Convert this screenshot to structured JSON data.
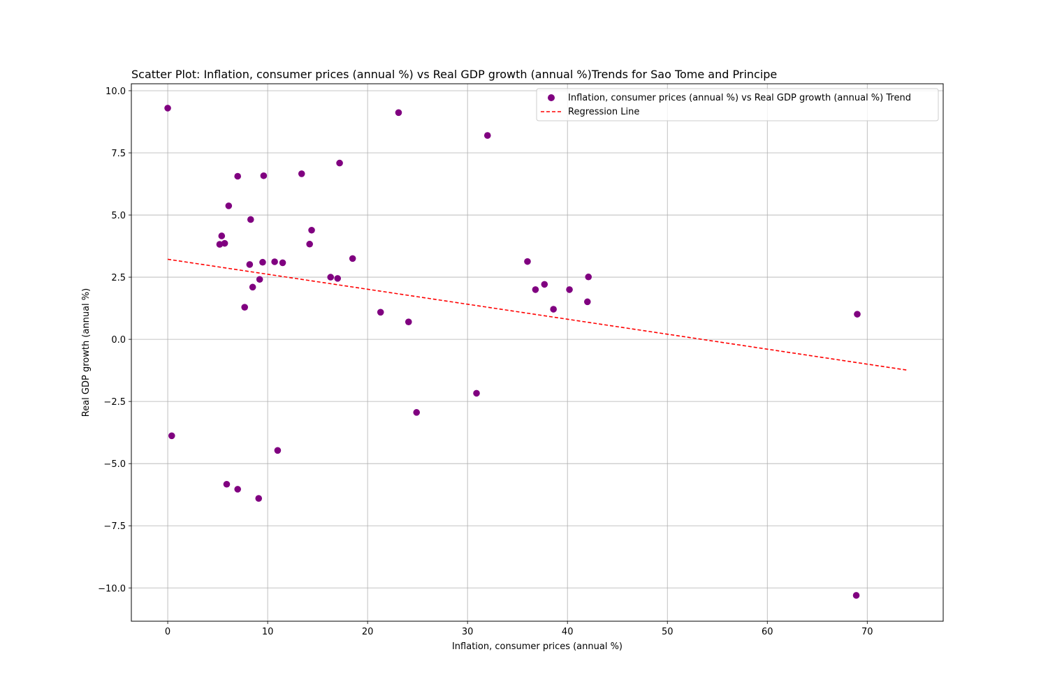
{
  "chart_data": {
    "type": "scatter",
    "title": "Scatter Plot: Inflation, consumer prices (annual %) vs Real GDP growth (annual %)Trends for Sao Tome and Principe",
    "xlabel": "Inflation, consumer prices (annual %)",
    "ylabel": "Real GDP growth (annual %)",
    "xlim": [
      -3.64,
      77.6
    ],
    "ylim": [
      -11.34,
      10.28
    ],
    "xticks": [
      0,
      10,
      20,
      30,
      40,
      50,
      60,
      70
    ],
    "yticks": [
      10.0,
      7.5,
      5.0,
      2.5,
      0.0,
      -2.5,
      -5.0,
      -7.5,
      -10.0
    ],
    "xtick_labels": [
      "0",
      "10",
      "20",
      "30",
      "40",
      "50",
      "60",
      "70"
    ],
    "ytick_labels": [
      "10.0",
      "7.5",
      "5.0",
      "2.5",
      "0.0",
      "−2.5",
      "−5.0",
      "−7.5",
      "−10.0"
    ],
    "grid": true,
    "legend_position": "top-right",
    "series": [
      {
        "name": "Inflation, consumer prices (annual %) vs Real GDP growth (annual %) Trend",
        "kind": "scatter",
        "color": "#800080",
        "points": [
          [
            0.0,
            9.3
          ],
          [
            0.4,
            -3.88
          ],
          [
            5.2,
            3.82
          ],
          [
            5.4,
            4.16
          ],
          [
            5.7,
            3.86
          ],
          [
            5.9,
            -5.83
          ],
          [
            6.1,
            5.37
          ],
          [
            7.0,
            6.56
          ],
          [
            7.0,
            -6.03
          ],
          [
            7.7,
            1.29
          ],
          [
            8.2,
            3.01
          ],
          [
            8.3,
            4.82
          ],
          [
            8.5,
            2.1
          ],
          [
            9.1,
            -6.4
          ],
          [
            9.2,
            2.41
          ],
          [
            9.5,
            3.1
          ],
          [
            9.6,
            6.58
          ],
          [
            10.7,
            3.12
          ],
          [
            11.0,
            -4.47
          ],
          [
            11.5,
            3.08
          ],
          [
            13.4,
            6.66
          ],
          [
            14.2,
            3.83
          ],
          [
            14.4,
            4.39
          ],
          [
            16.3,
            2.5
          ],
          [
            17.0,
            2.45
          ],
          [
            17.2,
            7.09
          ],
          [
            18.5,
            3.25
          ],
          [
            21.3,
            1.09
          ],
          [
            23.1,
            9.12
          ],
          [
            24.1,
            0.7
          ],
          [
            24.9,
            -2.94
          ],
          [
            30.9,
            -2.17
          ],
          [
            32.0,
            8.2
          ],
          [
            36.0,
            3.13
          ],
          [
            36.8,
            2.0
          ],
          [
            37.7,
            2.21
          ],
          [
            38.6,
            1.21
          ],
          [
            40.2,
            2.0
          ],
          [
            42.0,
            1.51
          ],
          [
            42.1,
            2.51
          ],
          [
            69.0,
            1.01
          ],
          [
            68.9,
            -10.3
          ]
        ]
      },
      {
        "name": "Regression Line",
        "kind": "line",
        "color": "#ff0000",
        "dashed": true,
        "points": [
          [
            0.0,
            3.22
          ],
          [
            74.0,
            -1.24
          ]
        ]
      }
    ]
  }
}
